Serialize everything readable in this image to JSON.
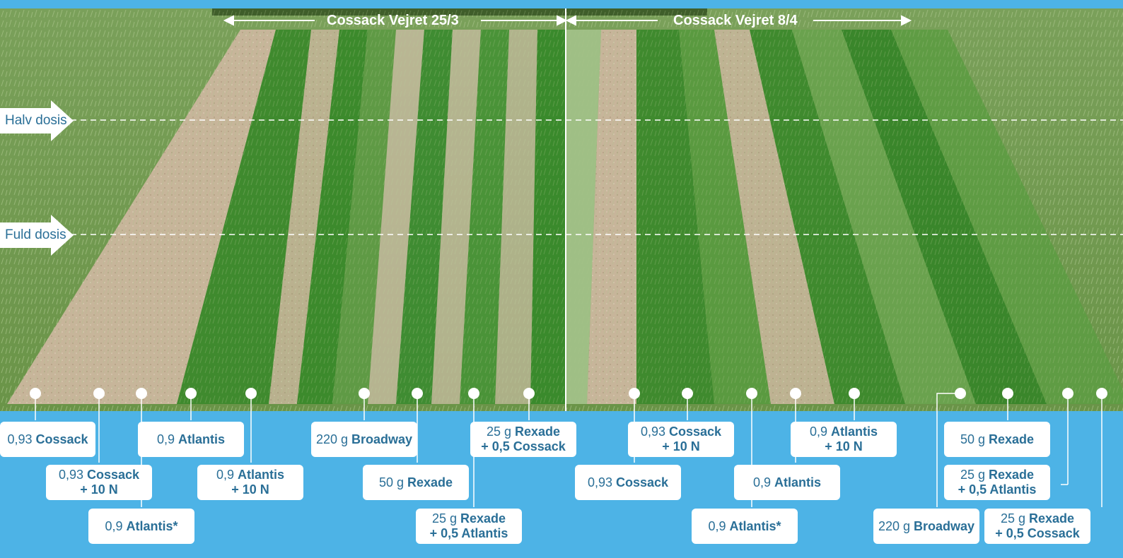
{
  "top_titles": {
    "left": "Cossack Vejret 25/3",
    "right": "Cossack Vejret 8/4"
  },
  "dose_markers": {
    "half": "Halv dosis",
    "full": "Fuld dosis"
  },
  "colors": {
    "frame_blue": "#4db3e6",
    "label_text": "#2a6f97",
    "label_bg": "#ffffff"
  },
  "labels": {
    "l1": {
      "dose": "0,93",
      "prod": "Cossack",
      "extra": ""
    },
    "l2": {
      "dose": "0,93",
      "prod": "Cossack",
      "extra": "+ 10 N"
    },
    "l3": {
      "dose": "0,9",
      "prod": "Atlantis*",
      "extra": ""
    },
    "l4": {
      "dose": "0,9",
      "prod": "Atlantis",
      "extra": ""
    },
    "l5": {
      "dose": "0,9",
      "prod": "Atlantis",
      "extra": "+ 10 N"
    },
    "l6": {
      "dose": "220 g",
      "prod": "Broadway",
      "extra": ""
    },
    "l7": {
      "dose": "50 g",
      "prod": "Rexade",
      "extra": ""
    },
    "l8": {
      "dose": "25 g",
      "prod": "Rexade",
      "extra": "+ 0,5 Atlantis"
    },
    "l9": {
      "dose": "25 g",
      "prod": "Rexade",
      "extra": "+ 0,5 Cossack"
    },
    "r1": {
      "dose": "0,93",
      "prod": "Cossack",
      "extra": ""
    },
    "r2": {
      "dose": "0,93",
      "prod": "Cossack",
      "extra": "+ 10 N"
    },
    "r3": {
      "dose": "0,9",
      "prod": "Atlantis*",
      "extra": ""
    },
    "r4": {
      "dose": "0,9",
      "prod": "Atlantis",
      "extra": ""
    },
    "r5": {
      "dose": "0,9",
      "prod": "Atlantis",
      "extra": "+ 10 N"
    },
    "r6": {
      "dose": "220 g",
      "prod": "Broadway",
      "extra": ""
    },
    "r7": {
      "dose": "50 g",
      "prod": "Rexade",
      "extra": ""
    },
    "r8": {
      "dose": "25 g",
      "prod": "Rexade",
      "extra": "+ 0,5 Atlantis"
    },
    "r9": {
      "dose": "25 g",
      "prod": "Rexade",
      "extra": "+ 0,5 Cossack"
    }
  }
}
